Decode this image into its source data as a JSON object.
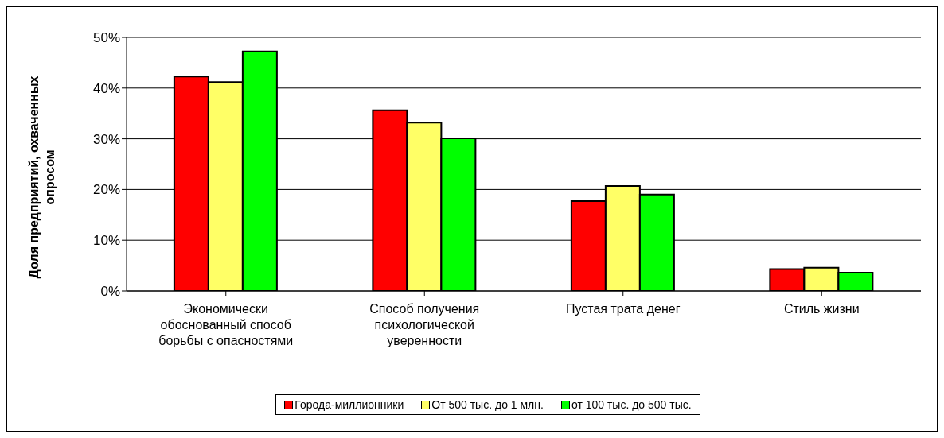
{
  "chart_data": {
    "type": "bar",
    "ylabel": "Доля предприятий, охваченных опросом",
    "categories": [
      "Экономически обоснованный способ борьбы с опасностями",
      "Способ получения психологической уверенности",
      "Пустая трата денег",
      "Стиль жизни"
    ],
    "series": [
      {
        "name": "Города-миллионники",
        "color": "#ff0000",
        "values": [
          42.3,
          35.6,
          17.7,
          4.3
        ]
      },
      {
        "name": "От 500 тыс. до 1 млн.",
        "color": "#ffff66",
        "values": [
          41.2,
          33.2,
          20.7,
          4.6
        ]
      },
      {
        "name": "от 100 тыс. до 500 тыс.",
        "color": "#00ff00",
        "values": [
          47.2,
          30.1,
          19.0,
          3.6
        ]
      }
    ],
    "ylim": [
      0,
      50
    ],
    "yticks": [
      {
        "value": 0,
        "label": "0%"
      },
      {
        "value": 10,
        "label": "10%"
      },
      {
        "value": 20,
        "label": "20%"
      },
      {
        "value": 30,
        "label": "30%"
      },
      {
        "value": 40,
        "label": "40%"
      },
      {
        "value": 50,
        "label": "50%"
      }
    ],
    "grid": "y",
    "legend": "bottom"
  }
}
